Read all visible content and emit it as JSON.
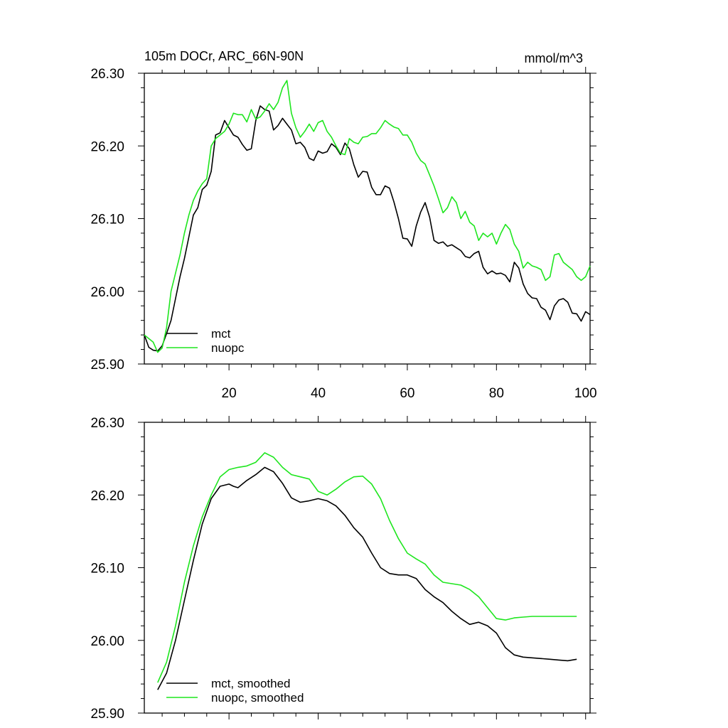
{
  "chart_data": [
    {
      "type": "line",
      "title": "105m DOCr, ARC_66N-90N",
      "units": "mmol/m^3",
      "xlim": [
        1,
        101
      ],
      "ylim": [
        25.9,
        26.3
      ],
      "xticks": [
        20,
        40,
        60,
        80,
        100
      ],
      "yticks": [
        25.9,
        26.0,
        26.1,
        26.2,
        26.3
      ],
      "ytick_labels": [
        "25.90",
        "26.00",
        "26.10",
        "26.20",
        "26.30"
      ],
      "legend_position": "bottom-left",
      "series": [
        {
          "name": "mct",
          "color": "#000000",
          "x": [
            1,
            2,
            3,
            4,
            5,
            6,
            7,
            8,
            9,
            10,
            11,
            12,
            13,
            14,
            15,
            16,
            17,
            18,
            19,
            20,
            21,
            22,
            23,
            24,
            25,
            26,
            27,
            28,
            29,
            30,
            31,
            32,
            33,
            34,
            35,
            36,
            37,
            38,
            39,
            40,
            41,
            42,
            43,
            44,
            45,
            46,
            47,
            48,
            49,
            50,
            51,
            52,
            53,
            54,
            55,
            56,
            57,
            58,
            59,
            60,
            61,
            62,
            63,
            64,
            65,
            66,
            67,
            68,
            69,
            70,
            71,
            72,
            73,
            74,
            75,
            76,
            77,
            78,
            79,
            80,
            81,
            82,
            83,
            84,
            85,
            86,
            87,
            88,
            89,
            90,
            91,
            92,
            93,
            94,
            95,
            96,
            97,
            98,
            99,
            100,
            101
          ],
          "values": [
            25.94,
            25.923,
            25.919,
            25.918,
            25.925,
            25.942,
            25.96,
            25.99,
            26.02,
            26.045,
            26.075,
            26.105,
            26.115,
            26.14,
            26.146,
            26.165,
            26.215,
            26.218,
            26.235,
            26.225,
            26.215,
            26.212,
            26.202,
            26.194,
            26.196,
            26.235,
            26.255,
            26.25,
            26.248,
            26.222,
            26.228,
            26.238,
            26.23,
            26.222,
            26.203,
            26.205,
            26.198,
            26.183,
            26.18,
            26.193,
            26.19,
            26.192,
            26.203,
            26.198,
            26.188,
            26.204,
            26.196,
            26.174,
            26.157,
            26.165,
            26.164,
            26.143,
            26.133,
            26.133,
            26.145,
            26.142,
            26.123,
            26.1,
            26.073,
            26.072,
            26.062,
            26.09,
            26.109,
            26.122,
            26.102,
            26.07,
            26.066,
            26.068,
            26.062,
            26.064,
            26.06,
            26.056,
            26.048,
            26.046,
            26.052,
            26.055,
            26.033,
            26.024,
            26.028,
            26.024,
            26.025,
            26.022,
            26.013,
            26.04,
            26.032,
            26.01,
            25.997,
            25.991,
            25.99,
            25.978,
            25.974,
            25.961,
            25.98,
            25.988,
            25.99,
            25.985,
            25.97,
            25.969,
            25.959,
            25.972,
            25.968
          ]
        },
        {
          "name": "nuopc",
          "color": "#1ee61e",
          "x": [
            1,
            2,
            3,
            4,
            5,
            6,
            7,
            8,
            9,
            10,
            11,
            12,
            13,
            14,
            15,
            16,
            17,
            18,
            19,
            20,
            21,
            22,
            23,
            24,
            25,
            26,
            27,
            28,
            29,
            30,
            31,
            32,
            33,
            34,
            35,
            36,
            37,
            38,
            39,
            40,
            41,
            42,
            43,
            44,
            45,
            46,
            47,
            48,
            49,
            50,
            51,
            52,
            53,
            54,
            55,
            56,
            57,
            58,
            59,
            60,
            61,
            62,
            63,
            64,
            65,
            66,
            67,
            68,
            69,
            70,
            71,
            72,
            73,
            74,
            75,
            76,
            77,
            78,
            79,
            80,
            81,
            82,
            83,
            84,
            85,
            86,
            87,
            88,
            89,
            90,
            91,
            92,
            93,
            94,
            95,
            96,
            97,
            98,
            99,
            100,
            101
          ],
          "values": [
            25.94,
            25.935,
            25.93,
            25.916,
            25.922,
            25.95,
            26.0,
            26.025,
            26.05,
            26.08,
            26.105,
            26.125,
            26.138,
            26.148,
            26.155,
            26.2,
            26.21,
            26.215,
            26.22,
            26.23,
            26.245,
            26.243,
            26.243,
            26.233,
            26.25,
            26.237,
            26.24,
            26.248,
            26.258,
            26.25,
            26.26,
            26.28,
            26.29,
            26.245,
            26.225,
            26.212,
            26.22,
            26.23,
            26.22,
            26.232,
            26.235,
            26.22,
            26.212,
            26.2,
            26.19,
            26.188,
            26.21,
            26.205,
            26.203,
            26.212,
            26.213,
            26.217,
            26.217,
            26.225,
            26.235,
            26.23,
            26.226,
            26.224,
            26.215,
            26.215,
            26.205,
            26.19,
            26.18,
            26.175,
            26.16,
            26.145,
            26.127,
            26.108,
            26.115,
            26.13,
            26.122,
            26.1,
            26.11,
            26.095,
            26.09,
            26.07,
            26.08,
            26.075,
            26.08,
            26.065,
            26.08,
            26.092,
            26.085,
            26.065,
            26.055,
            26.032,
            26.04,
            26.035,
            26.033,
            26.03,
            26.015,
            26.02,
            26.05,
            26.052,
            26.04,
            26.035,
            26.03,
            26.02,
            26.015,
            26.02,
            26.035
          ]
        }
      ]
    },
    {
      "type": "line",
      "xlim": [
        1,
        101
      ],
      "ylim": [
        25.9,
        26.3
      ],
      "xticks": [
        20,
        40,
        60,
        80,
        100
      ],
      "yticks": [
        25.9,
        26.0,
        26.1,
        26.2,
        26.3
      ],
      "ytick_labels": [
        "25.90",
        "26.00",
        "26.10",
        "26.20",
        "26.30"
      ],
      "legend_position": "bottom-left",
      "series": [
        {
          "name": "mct, smoothed",
          "color": "#000000",
          "x": [
            4,
            6,
            8,
            10,
            12,
            14,
            16,
            18,
            20,
            21,
            22,
            23,
            24,
            26,
            28,
            30,
            32,
            34,
            36,
            38,
            40,
            42,
            44,
            46,
            48,
            50,
            52,
            54,
            56,
            58,
            60,
            62,
            64,
            66,
            68,
            70,
            72,
            74,
            76,
            78,
            80,
            82,
            84,
            86,
            88,
            90,
            92,
            94,
            96,
            98
          ],
          "values": [
            25.932,
            25.955,
            26.0,
            26.055,
            26.11,
            26.16,
            26.195,
            26.212,
            26.215,
            26.212,
            26.21,
            26.215,
            26.22,
            26.228,
            26.238,
            26.232,
            26.216,
            26.196,
            26.19,
            26.192,
            26.195,
            26.192,
            26.185,
            26.172,
            26.155,
            26.142,
            26.12,
            26.1,
            26.092,
            26.09,
            26.09,
            26.085,
            26.07,
            26.06,
            26.052,
            26.04,
            26.03,
            26.022,
            26.025,
            26.02,
            26.01,
            25.99,
            25.98,
            25.977,
            25.976,
            25.975,
            25.974,
            25.973,
            25.972,
            25.974
          ]
        },
        {
          "name": "nuopc, smoothed",
          "color": "#1ee61e",
          "x": [
            4,
            6,
            8,
            10,
            12,
            14,
            16,
            18,
            20,
            22,
            24,
            26,
            28,
            30,
            32,
            34,
            36,
            38,
            40,
            42,
            44,
            46,
            48,
            50,
            52,
            54,
            56,
            58,
            60,
            62,
            64,
            66,
            68,
            70,
            72,
            74,
            76,
            78,
            80,
            82,
            84,
            86,
            88,
            90,
            92,
            94,
            96,
            98
          ],
          "values": [
            25.942,
            25.97,
            26.02,
            26.08,
            26.13,
            26.17,
            26.2,
            26.225,
            26.235,
            26.238,
            26.24,
            26.245,
            26.258,
            26.252,
            26.238,
            26.228,
            26.225,
            26.222,
            26.205,
            26.2,
            26.208,
            26.218,
            26.225,
            26.226,
            26.215,
            26.195,
            26.165,
            26.14,
            26.12,
            26.112,
            26.105,
            26.09,
            26.08,
            26.078,
            26.076,
            26.07,
            26.06,
            26.045,
            26.03,
            26.028,
            26.031,
            26.032,
            26.033,
            26.033,
            26.033,
            26.033,
            26.033,
            26.033
          ]
        }
      ]
    }
  ]
}
